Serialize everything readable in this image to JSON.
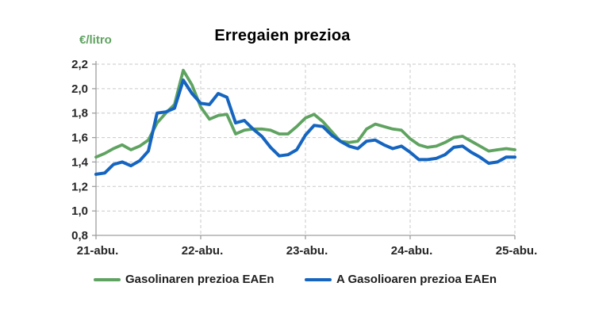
{
  "figure": {
    "title": "Erregaien prezioa",
    "y_unit_label": "€/litro"
  },
  "legend": {
    "items": [
      {
        "label": "Gasolinaren prezioa EAEn",
        "color": "#5fa360"
      },
      {
        "label": "A Gasolioaren prezioa EAEn",
        "color": "#1565c0"
      }
    ]
  },
  "colors": {
    "green_series": "#5fa360",
    "blue_series": "#1565c0",
    "gridline": "#c9c9c9",
    "axis": "#9f9f9f",
    "tick_text": "#262626",
    "title_text": "#000000"
  },
  "chart_data": {
    "type": "line",
    "title": "Erregaien prezioa",
    "xlabel": "",
    "ylabel": "€/litro",
    "ylim": [
      0.8,
      2.2
    ],
    "y_tick_step": 0.2,
    "y_tick_labels": [
      "2,2",
      "2,0",
      "1,8",
      "1,6",
      "1,4",
      "1,2",
      "1,0",
      "0,8"
    ],
    "x_tick_labels": [
      "21-abu.",
      "22-abu.",
      "23-abu.",
      "24-abu.",
      "25-abu."
    ],
    "points_per_day": 12,
    "grid": "dashed",
    "legend_position": "bottom",
    "series": [
      {
        "name": "Gasolinaren prezioa EAEn",
        "color": "#5fa360",
        "values": [
          1.44,
          1.47,
          1.51,
          1.54,
          1.5,
          1.53,
          1.58,
          1.72,
          1.8,
          1.87,
          2.15,
          2.03,
          1.85,
          1.75,
          1.78,
          1.79,
          1.63,
          1.66,
          1.67,
          1.67,
          1.66,
          1.63,
          1.63,
          1.69,
          1.76,
          1.79,
          1.73,
          1.65,
          1.57,
          1.56,
          1.57,
          1.67,
          1.71,
          1.69,
          1.67,
          1.66,
          1.59,
          1.54,
          1.52,
          1.53,
          1.56,
          1.6,
          1.61,
          1.57,
          1.53,
          1.49,
          1.5,
          1.51,
          1.5
        ]
      },
      {
        "name": "A Gasolioaren prezioa EAEn",
        "color": "#1565c0",
        "values": [
          1.3,
          1.31,
          1.38,
          1.4,
          1.37,
          1.41,
          1.49,
          1.8,
          1.81,
          1.84,
          2.07,
          1.96,
          1.88,
          1.87,
          1.96,
          1.93,
          1.72,
          1.74,
          1.67,
          1.61,
          1.52,
          1.45,
          1.46,
          1.5,
          1.62,
          1.7,
          1.69,
          1.62,
          1.57,
          1.53,
          1.51,
          1.57,
          1.58,
          1.54,
          1.51,
          1.53,
          1.48,
          1.42,
          1.42,
          1.43,
          1.46,
          1.52,
          1.53,
          1.48,
          1.44,
          1.39,
          1.4,
          1.44,
          1.44
        ]
      }
    ]
  }
}
